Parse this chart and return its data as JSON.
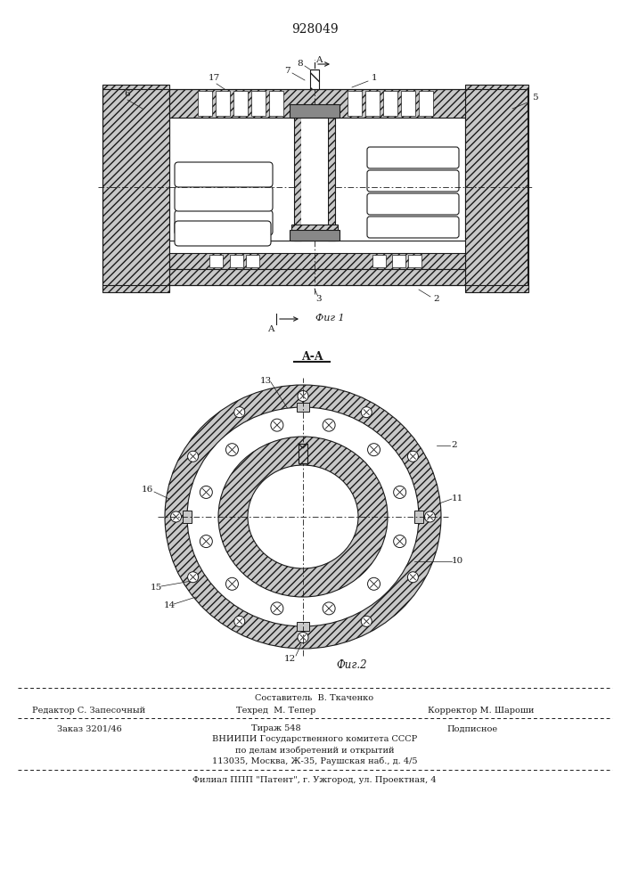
{
  "patent_number": "928049",
  "fig1_label": "Фиг 1",
  "fig2_label": "Фиг.2",
  "section_label": "A-A",
  "bg_color": "#ffffff",
  "line_color": "#1a1a1a",
  "gray_fill": "#c8c8c8",
  "white_fill": "#ffffff",
  "footer_line0": "Составитель  В. Ткаченко",
  "footer_line1_left": "Редактор С. Запесочный",
  "footer_line1_mid": "Техред  М. Тепер",
  "footer_line1_right": "Корректор М. Шароши",
  "footer_line2_left": "Заказ 3201/46",
  "footer_line2_mid": "Тираж 548",
  "footer_line2_right": "Подписное",
  "footer_line3": "ВНИИПИ Государственного комитета СССР",
  "footer_line4": "по делам изобретений и открытий",
  "footer_line5": "113035, Москва, Ж-35, Раушская наб., д. 4/5",
  "footer_line6": "Филиал ППП \"Патент\", г. Ужгород, ул. Проектная, 4"
}
